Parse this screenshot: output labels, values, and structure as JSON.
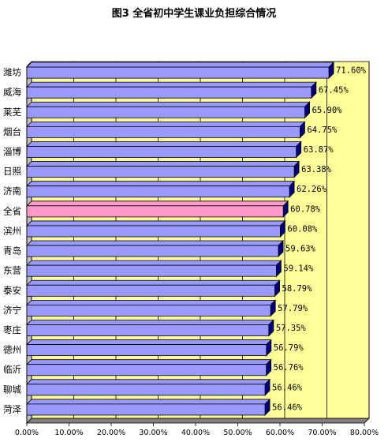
{
  "chart_data": {
    "type": "bar",
    "orientation": "horizontal",
    "title": "图3 全省初中学生课业负担综合情况",
    "categories": [
      "潍坊",
      "威海",
      "莱芜",
      "烟台",
      "淄博",
      "日照",
      "济南",
      "全省",
      "滨州",
      "青岛",
      "东营",
      "泰安",
      "济宁",
      "枣庄",
      "德州",
      "临沂",
      "聊城",
      "菏泽"
    ],
    "values": [
      71.6,
      67.45,
      65.9,
      64.75,
      63.87,
      63.38,
      62.26,
      60.78,
      60.08,
      59.63,
      59.14,
      58.79,
      57.79,
      57.35,
      56.79,
      56.76,
      56.46,
      56.46
    ],
    "value_labels": [
      "71.60%",
      "67.45%",
      "65.90%",
      "64.75%",
      "63.87%",
      "63.38%",
      "62.26%",
      "60.78%",
      "60.08%",
      "59.63%",
      "59.14%",
      "58.79%",
      "57.79%",
      "57.35%",
      "56.79%",
      "56.76%",
      "56.46%",
      "56.46%"
    ],
    "highlight_category": "全省",
    "x_ticks": [
      "0.00%",
      "10.00%",
      "20.00%",
      "30.00%",
      "40.00%",
      "50.00%",
      "60.00%",
      "70.00%",
      "80.00%"
    ],
    "xlim": [
      0,
      80
    ],
    "grid": true,
    "colors": {
      "plot_background": "#ffff99",
      "bar": "#9999ff",
      "highlight_bar": "#ff99cc",
      "wall": "#c0c0c0",
      "floor": "#808080"
    }
  }
}
